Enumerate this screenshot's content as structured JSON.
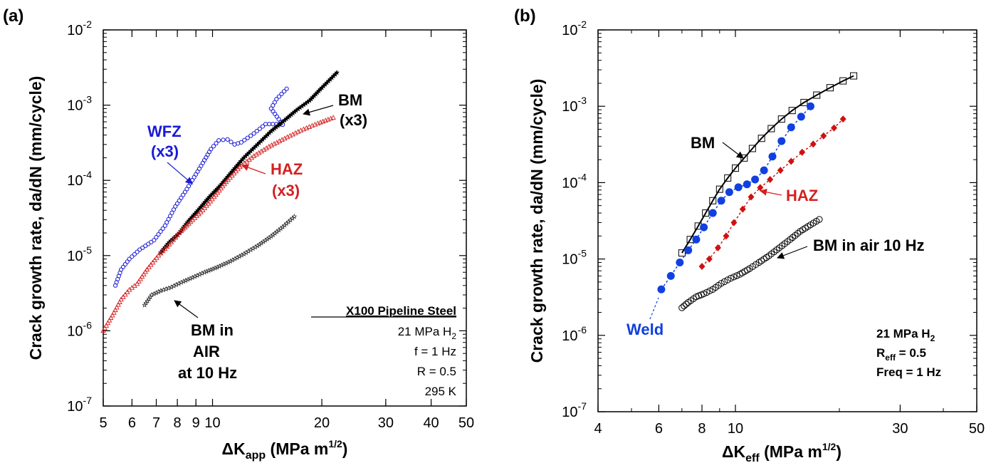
{
  "panel_a": {
    "tag": "(a)",
    "xlabel_main": "ΔK",
    "xlabel_sub": "app",
    "xlabel_rest": " (MPa m",
    "xlabel_sup": "1/2",
    "xlabel_end": ")",
    "ylabel": "Crack growth rate, da/dN (mm/cycle)",
    "info_title": "X100 Pipeline Steel",
    "info_h2": "21 MPa H",
    "info_h2_sub": "2",
    "info_f": "f = 1 Hz",
    "info_r": "R = 0.5",
    "info_t": "295 K",
    "labels": {
      "wfz1": "WFZ",
      "wfz2": "(x3)",
      "bm1": "BM",
      "bm2": "(x3)",
      "haz1": "HAZ",
      "haz2": "(x3)",
      "air1": "BM in",
      "air2": "AIR",
      "air3": "at 10 Hz"
    }
  },
  "panel_b": {
    "tag": "(b)",
    "xlabel_main": "ΔK",
    "xlabel_sub": "eff",
    "xlabel_rest": " (MPa m",
    "xlabel_sup": "1/2",
    "xlabel_end": ")",
    "ylabel": "Crack growth rate, da/dN (mm/cycle)",
    "info_h2": "21 MPa H",
    "info_h2_sub": "2",
    "info_r": "R",
    "info_r_sub": "eff",
    "info_r_val": " = 0.5",
    "info_f": "Freq = 1 Hz",
    "labels": {
      "bm": "BM",
      "haz": "HAZ",
      "air": "BM in air 10 Hz",
      "weld": "Weld"
    }
  },
  "colors": {
    "blue": "#1a1ad6",
    "red": "#d42020",
    "black": "#000000",
    "blue_b": "#1040e0",
    "red_b": "#d01010"
  },
  "chart_data": [
    {
      "type": "scatter",
      "xscale": "log",
      "yscale": "log",
      "xlim": [
        5,
        50
      ],
      "ylim": [
        1e-07,
        0.01
      ],
      "xticks": [
        5,
        6,
        7,
        8,
        9,
        10,
        20,
        30,
        40,
        50
      ],
      "xtick_labels": [
        "5",
        "6",
        "7",
        "8",
        "9",
        "10",
        "20",
        "30",
        "40",
        "50"
      ],
      "yticks": [
        1e-07,
        1e-06,
        1e-05,
        0.0001,
        0.001,
        0.01
      ],
      "ytick_labels": [
        [
          "10",
          "-7"
        ],
        [
          "10",
          "-6"
        ],
        [
          "10",
          "-5"
        ],
        [
          "10",
          "-4"
        ],
        [
          "10",
          "-3"
        ],
        [
          "10",
          "-2"
        ]
      ],
      "series": [
        {
          "name": "WFZ (x3)",
          "marker": "circle-open",
          "color": "#1a1ad6",
          "points": [
            [
              5.4,
              4e-06
            ],
            [
              5.6,
              6.5e-06
            ],
            [
              5.9,
              9e-06
            ],
            [
              6.3,
              1.2e-05
            ],
            [
              6.9,
              1.6e-05
            ],
            [
              7.4,
              2.5e-05
            ],
            [
              7.9,
              4.5e-05
            ],
            [
              8.4,
              7e-05
            ],
            [
              8.9,
              0.00011
            ],
            [
              9.4,
              0.00017
            ],
            [
              9.9,
              0.00026
            ],
            [
              10.4,
              0.00034
            ],
            [
              11,
              0.00035
            ],
            [
              11.5,
              0.0003
            ],
            [
              12,
              0.00032
            ],
            [
              13,
              0.00042
            ],
            [
              14,
              0.00056
            ],
            [
              15,
              0.00056
            ],
            [
              15.6,
              0.00055
            ],
            [
              14.5,
              0.0009
            ],
            [
              15,
              0.0012
            ],
            [
              16,
              0.00165
            ]
          ]
        },
        {
          "name": "BM (x3)",
          "marker": "star",
          "color": "#000000",
          "points": [
            [
              7.2,
              1.1e-05
            ],
            [
              7.6,
              1.5e-05
            ],
            [
              8.1,
              2e-05
            ],
            [
              8.6,
              2.9e-05
            ],
            [
              9.2,
              4.2e-05
            ],
            [
              9.8,
              6e-05
            ],
            [
              10.5,
              8.5e-05
            ],
            [
              11.3,
              0.00013
            ],
            [
              12.2,
              0.0002
            ],
            [
              13.3,
              0.0003
            ],
            [
              14.5,
              0.00045
            ],
            [
              15.8,
              0.00063
            ],
            [
              17,
              0.00085
            ],
            [
              18.5,
              0.00115
            ],
            [
              20,
              0.0017
            ],
            [
              22,
              0.0027
            ]
          ]
        },
        {
          "name": "HAZ (x3)",
          "marker": "triangle-open",
          "color": "#d42020",
          "points": [
            [
              5,
              1e-06
            ],
            [
              5.3,
              1.6e-06
            ],
            [
              5.6,
              2.6e-06
            ],
            [
              5.9,
              3.5e-06
            ],
            [
              6.2,
              4.2e-06
            ],
            [
              6.6,
              6.5e-06
            ],
            [
              7.1,
              1e-05
            ],
            [
              7.6,
              1.4e-05
            ],
            [
              8.1,
              2e-05
            ],
            [
              8.7,
              2.8e-05
            ],
            [
              9.4,
              4e-05
            ],
            [
              10.1,
              6e-05
            ],
            [
              10.9,
              9.5e-05
            ],
            [
              11.9,
              0.00015
            ],
            [
              13,
              0.00021
            ],
            [
              14.3,
              0.00028
            ],
            [
              15.8,
              0.00036
            ],
            [
              17.5,
              0.00046
            ],
            [
              19.5,
              0.00057
            ],
            [
              21.5,
              0.00068
            ]
          ]
        },
        {
          "name": "BM in AIR at 10 Hz",
          "marker": "star-small",
          "color": "#333333",
          "points": [
            [
              6.5,
              2.2e-06
            ],
            [
              6.8,
              3e-06
            ],
            [
              7.2,
              3.4e-06
            ],
            [
              7.7,
              3.8e-06
            ],
            [
              8.2,
              4.4e-06
            ],
            [
              8.8,
              5.1e-06
            ],
            [
              9.5,
              6e-06
            ],
            [
              10.3,
              7e-06
            ],
            [
              11.2,
              8.4e-06
            ],
            [
              12.2,
              1.05e-05
            ],
            [
              13.3,
              1.35e-05
            ],
            [
              14.5,
              1.8e-05
            ],
            [
              15.6,
              2.4e-05
            ],
            [
              16.8,
              3.3e-05
            ]
          ]
        }
      ]
    },
    {
      "type": "scatter",
      "xscale": "log",
      "yscale": "log",
      "xlim": [
        4,
        50
      ],
      "ylim": [
        1e-07,
        0.01
      ],
      "xticks": [
        4,
        6,
        8,
        10,
        30,
        50
      ],
      "xtick_labels": [
        "4",
        "6",
        "8",
        "10",
        "30",
        "50"
      ],
      "yticks": [
        1e-07,
        1e-06,
        1e-05,
        0.0001,
        0.001,
        0.01
      ],
      "ytick_labels": [
        [
          "10",
          "-7"
        ],
        [
          "10",
          "-6"
        ],
        [
          "10",
          "-5"
        ],
        [
          "10",
          "-4"
        ],
        [
          "10",
          "-3"
        ],
        [
          "10",
          "-2"
        ]
      ],
      "series": [
        {
          "name": "BM",
          "marker": "square-open-line",
          "color": "#000000",
          "points": [
            [
              7,
              1.2e-05
            ],
            [
              7.4,
              1.8e-05
            ],
            [
              7.8,
              2.7e-05
            ],
            [
              8.2,
              4e-05
            ],
            [
              8.6,
              5.8e-05
            ],
            [
              9,
              8.2e-05
            ],
            [
              9.5,
              0.000115
            ],
            [
              10,
              0.000155
            ],
            [
              10.6,
              0.00021
            ],
            [
              11.2,
              0.00028
            ],
            [
              11.9,
              0.00038
            ],
            [
              12.7,
              0.00051
            ],
            [
              13.6,
              0.00068
            ],
            [
              14.6,
              0.00088
            ],
            [
              15.8,
              0.00112
            ],
            [
              17.2,
              0.0014
            ],
            [
              18.8,
              0.00175
            ],
            [
              20.5,
              0.00215
            ],
            [
              22,
              0.0025
            ]
          ]
        },
        {
          "name": "Weld",
          "marker": "circle-filled",
          "color": "#1040e0",
          "points": [
            [
              6.1,
              4e-06
            ],
            [
              6.5,
              6e-06
            ],
            [
              6.9,
              9e-06
            ],
            [
              7.3,
              1.3e-05
            ],
            [
              7.7,
              1.8e-05
            ],
            [
              8.1,
              2.6e-05
            ],
            [
              8.6,
              4e-05
            ],
            [
              9.1,
              5.8e-05
            ],
            [
              9.6,
              7.5e-05
            ],
            [
              10.2,
              8.7e-05
            ],
            [
              10.8,
              9.5e-05
            ],
            [
              11.4,
              0.00011
            ],
            [
              12.1,
              0.000145
            ],
            [
              12.8,
              0.00022
            ],
            [
              13.6,
              0.00035
            ],
            [
              14.5,
              0.00053
            ],
            [
              15.5,
              0.00073
            ],
            [
              16.5,
              0.001
            ]
          ]
        },
        {
          "name": "HAZ",
          "marker": "diamond-filled",
          "color": "#d01010",
          "points": [
            [
              8,
              8e-06
            ],
            [
              8.4,
              1e-05
            ],
            [
              8.9,
              1.4e-05
            ],
            [
              9.4,
              2e-05
            ],
            [
              9.9,
              3e-05
            ],
            [
              10.5,
              4.5e-05
            ],
            [
              11.1,
              6.5e-05
            ],
            [
              11.8,
              8.6e-05
            ],
            [
              12.6,
              0.00011
            ],
            [
              13.5,
              0.000145
            ],
            [
              14.5,
              0.00019
            ],
            [
              15.6,
              0.00025
            ],
            [
              16.8,
              0.00032
            ],
            [
              18,
              0.00041
            ],
            [
              19.3,
              0.00052
            ],
            [
              20.5,
              0.00068
            ]
          ]
        },
        {
          "name": "BM in air 10 Hz",
          "marker": "circle-open",
          "color": "#000000",
          "points": [
            [
              7,
              2.3e-06
            ],
            [
              7.3,
              2.7e-06
            ],
            [
              7.7,
              3.2e-06
            ],
            [
              8.1,
              3.5e-06
            ],
            [
              8.6,
              4e-06
            ],
            [
              9.1,
              4.8e-06
            ],
            [
              9.7,
              5.6e-06
            ],
            [
              10.3,
              6.3e-06
            ],
            [
              11,
              7.5e-06
            ],
            [
              11.7,
              9e-06
            ],
            [
              12.5,
              1.1e-05
            ],
            [
              13.4,
              1.4e-05
            ],
            [
              14.4,
              1.8e-05
            ],
            [
              15.4,
              2.3e-05
            ],
            [
              16.5,
              2.8e-05
            ],
            [
              17.5,
              3.3e-05
            ]
          ]
        }
      ]
    }
  ]
}
